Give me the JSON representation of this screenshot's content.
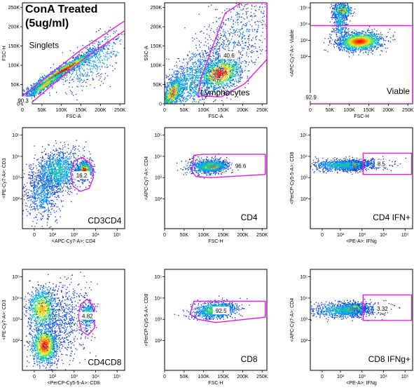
{
  "figure_title": [
    "ConA Treated",
    "(5ug/ml)"
  ],
  "colors": {
    "gate": "#e020e0",
    "frame": "#000000",
    "badge_bg": "#ffffff"
  },
  "chart_data": [
    {
      "type": "scatter",
      "gate_name": "Singlets",
      "percent": "90.3",
      "xlabel": "FSC-A",
      "ylabel": "FSC-H",
      "xscale": "linear",
      "yscale": "linear",
      "xlim": [
        0,
        262144
      ],
      "ylim": [
        0,
        262144
      ],
      "x_ticks": [
        {
          "v": 0,
          "label": "0"
        },
        {
          "v": 50000,
          "label": "50K"
        },
        {
          "v": 100000,
          "label": "100K"
        },
        {
          "v": 150000,
          "label": "150K"
        },
        {
          "v": 200000,
          "label": "200K"
        },
        {
          "v": 250000,
          "label": "250K"
        }
      ],
      "y_ticks": [
        {
          "v": 0,
          "label": "0"
        },
        {
          "v": 50000,
          "label": "50K"
        },
        {
          "v": 100000,
          "label": "100K"
        },
        {
          "v": 150000,
          "label": "150K"
        },
        {
          "v": 200000,
          "label": "200K"
        },
        {
          "v": 250000,
          "label": "250K"
        }
      ],
      "gate": [
        [
          0,
          0
        ],
        [
          0,
          20000
        ],
        [
          150000,
          140000
        ],
        [
          262000,
          215000
        ],
        [
          262000,
          190000
        ],
        [
          150000,
          112000
        ],
        [
          20000,
          0
        ]
      ],
      "label_pos": [
        17000,
        145000
      ],
      "label_anchor": "start",
      "pct_pos": [
        2000,
        8000
      ],
      "clusters": [
        {
          "x": 100000,
          "y": 85000,
          "sx": 48000,
          "sy": 30000,
          "rho": 0.97,
          "n": 1800,
          "w": 1.0
        },
        {
          "x": 60000,
          "y": 52000,
          "sx": 25000,
          "sy": 18000,
          "rho": 0.96,
          "n": 600,
          "w": 0.8
        },
        {
          "x": 180000,
          "y": 110000,
          "sx": 50000,
          "sy": 40000,
          "rho": 0.7,
          "n": 450,
          "w": 0.3
        }
      ]
    },
    {
      "type": "scatter",
      "gate_name": "Lymphocytes",
      "percent": "40.6",
      "xlabel": "FSC-A",
      "ylabel": "SSC-A",
      "xscale": "linear",
      "yscale": "linear",
      "xlim": [
        0,
        262144
      ],
      "ylim": [
        0,
        262144
      ],
      "x_ticks": [
        {
          "v": 0,
          "label": "0"
        },
        {
          "v": 50000,
          "label": "50K"
        },
        {
          "v": 100000,
          "label": "100K"
        },
        {
          "v": 150000,
          "label": "150K"
        },
        {
          "v": 200000,
          "label": "200K"
        },
        {
          "v": 250000,
          "label": "250K"
        }
      ],
      "y_ticks": [
        {
          "v": 0,
          "label": "0"
        },
        {
          "v": 50000,
          "label": "50K"
        },
        {
          "v": 100000,
          "label": "100K"
        },
        {
          "v": 150000,
          "label": "150K"
        },
        {
          "v": 200000,
          "label": "200K"
        },
        {
          "v": 250000,
          "label": "250K"
        }
      ],
      "gate": [
        [
          85000,
          20000
        ],
        [
          95000,
          72000
        ],
        [
          155000,
          235000
        ],
        [
          195000,
          262000
        ],
        [
          262000,
          262000
        ],
        [
          262000,
          115000
        ],
        [
          205000,
          52000
        ],
        [
          145000,
          18000
        ]
      ],
      "label_pos": [
        92000,
        22000
      ],
      "label_anchor": "start",
      "pct_pos": [
        165000,
        126000
      ],
      "clusters": [
        {
          "x": 140000,
          "y": 80000,
          "sx": 28000,
          "sy": 22000,
          "rho": 0.3,
          "n": 1400,
          "w": 1.0
        },
        {
          "x": 20000,
          "y": 30000,
          "sx": 14000,
          "sy": 22000,
          "rho": 0.5,
          "n": 900,
          "w": 0.9
        },
        {
          "x": 70000,
          "y": 60000,
          "sx": 45000,
          "sy": 50000,
          "rho": 0.6,
          "n": 1100,
          "w": 0.35
        },
        {
          "x": 190000,
          "y": 180000,
          "sx": 50000,
          "sy": 60000,
          "rho": 0.5,
          "n": 600,
          "w": 0.15
        }
      ]
    },
    {
      "type": "scatter",
      "gate_name": "Viable",
      "percent": "92.9",
      "xlabel": "FSC-H",
      "ylabel": "<APC-Cy7-A>: Viable",
      "xscale": "linear",
      "yscale": "log",
      "xlim": [
        0,
        262144
      ],
      "ylim": [
        -0.9,
        5.3
      ],
      "x_ticks": [
        {
          "v": 0,
          "label": "0"
        },
        {
          "v": 50000,
          "label": "50K"
        },
        {
          "v": 100000,
          "label": "100K"
        },
        {
          "v": 150000,
          "label": "150K"
        },
        {
          "v": 200000,
          "label": "200K"
        },
        {
          "v": 250000,
          "label": "250K"
        }
      ],
      "y_ticks": [
        {
          "v": 2,
          "label": "10²"
        },
        {
          "v": 3,
          "label": "10³"
        },
        {
          "v": 4,
          "label": "10⁴"
        },
        {
          "v": 5,
          "label": "10⁵"
        }
      ],
      "gate": [
        [
          0,
          -0.9
        ],
        [
          0,
          3.9
        ],
        [
          262000,
          3.9
        ],
        [
          262000,
          -0.9
        ]
      ],
      "label_pos": [
        255000,
        -0.3
      ],
      "label_anchor": "end",
      "pct_pos": [
        2000,
        -0.5
      ],
      "clusters": [
        {
          "x": 125000,
          "y": 2.95,
          "sx": 28000,
          "sy": 0.28,
          "rho": 0.1,
          "n": 1600,
          "w": 1.0
        },
        {
          "x": 80000,
          "y": 4.85,
          "sx": 12000,
          "sy": 0.22,
          "rho": 0.0,
          "n": 450,
          "w": 0.8
        },
        {
          "x": 75000,
          "y": 4.1,
          "sx": 9000,
          "sy": 0.55,
          "rho": 0.0,
          "n": 350,
          "w": 0.35
        }
      ]
    },
    {
      "type": "scatter",
      "gate_name": "CD3CD4",
      "percent": "16.2",
      "xlabel": "<APC-Cy7-A>: CD4",
      "ylabel": "<PE-Cy7-A>: CD3",
      "xscale": "log",
      "yscale": "log",
      "xlim": [
        0.6,
        5.35
      ],
      "ylim": [
        0.6,
        5.35
      ],
      "x_ticks": [
        {
          "v": 1.15,
          "label": "0"
        },
        {
          "v": 2,
          "label": "10²"
        },
        {
          "v": 3,
          "label": "10³"
        },
        {
          "v": 4,
          "label": "10⁴"
        },
        {
          "v": 5,
          "label": "10⁵"
        }
      ],
      "y_ticks": [
        {
          "v": 2,
          "label": "10²"
        },
        {
          "v": 3,
          "label": "10³"
        },
        {
          "v": 4,
          "label": "10⁴"
        },
        {
          "v": 5,
          "label": "10⁵"
        }
      ],
      "gate": [
        [
          3.0,
          3.8
        ],
        [
          3.4,
          3.95
        ],
        [
          3.8,
          3.6
        ],
        [
          3.9,
          3.0
        ],
        [
          3.7,
          2.5
        ],
        [
          3.3,
          2.35
        ],
        [
          2.95,
          2.6
        ],
        [
          2.85,
          3.2
        ]
      ],
      "label_pos": [
        5.2,
        0.85
      ],
      "label_anchor": "end",
      "pct_pos": [
        3.35,
        3.1
      ],
      "clusters": [
        {
          "x": 3.45,
          "y": 3.35,
          "sx": 0.17,
          "sy": 0.2,
          "rho": 0.1,
          "n": 1000,
          "w": 1.0
        },
        {
          "x": 2.2,
          "y": 3.3,
          "sx": 0.55,
          "sy": 0.5,
          "rho": 0.2,
          "n": 1300,
          "w": 0.4
        },
        {
          "x": 1.5,
          "y": 2.2,
          "sx": 0.4,
          "sy": 0.6,
          "rho": 0.0,
          "n": 600,
          "w": 0.25
        }
      ]
    },
    {
      "type": "scatter",
      "gate_name": "CD4",
      "percent": "96.6",
      "xlabel": "FSC-H",
      "ylabel": "<APC-Cy7-A>: CD4",
      "xscale": "linear",
      "yscale": "log",
      "xlim": [
        0,
        262144
      ],
      "ylim": [
        0.6,
        5.35
      ],
      "x_ticks": [
        {
          "v": 0,
          "label": "0"
        },
        {
          "v": 50000,
          "label": "50K"
        },
        {
          "v": 100000,
          "label": "100K"
        },
        {
          "v": 150000,
          "label": "150K"
        },
        {
          "v": 200000,
          "label": "200K"
        },
        {
          "v": 250000,
          "label": "250K"
        }
      ],
      "y_ticks": [
        {
          "v": 2,
          "label": "10²"
        },
        {
          "v": 3,
          "label": "10³"
        },
        {
          "v": 4,
          "label": "10⁴"
        },
        {
          "v": 5,
          "label": "10⁵"
        }
      ],
      "gate": [
        [
          70000,
          3.3
        ],
        [
          75000,
          4.05
        ],
        [
          100000,
          4.1
        ],
        [
          258000,
          4.1
        ],
        [
          258000,
          3.15
        ],
        [
          120000,
          3.0
        ],
        [
          80000,
          3.05
        ]
      ],
      "label_pos": [
        195000,
        1.0
      ],
      "label_anchor": "start",
      "pct_pos": [
        195000,
        3.55
      ],
      "clusters": [
        {
          "x": 120000,
          "y": 3.55,
          "sx": 18000,
          "sy": 0.12,
          "rho": 0.2,
          "n": 1100,
          "w": 1.0
        },
        {
          "x": 110000,
          "y": 3.55,
          "sx": 28000,
          "sy": 0.2,
          "rho": 0.2,
          "n": 500,
          "w": 0.45
        }
      ]
    },
    {
      "type": "scatter",
      "gate_name": "CD4 IFN+",
      "percent": "8.5",
      "xlabel": "<PE-A>: IFNg",
      "ylabel": "<PerCP-Cy5-5-A>: CD8",
      "xscale": "log",
      "yscale": "log",
      "xlim": [
        0.6,
        5.35
      ],
      "ylim": [
        0.6,
        5.35
      ],
      "x_ticks": [
        {
          "v": 1.15,
          "label": "0"
        },
        {
          "v": 2,
          "label": "10²"
        },
        {
          "v": 3,
          "label": "10³"
        },
        {
          "v": 4,
          "label": "10⁴"
        },
        {
          "v": 5,
          "label": "10⁵"
        }
      ],
      "y_ticks": [
        {
          "v": 2,
          "label": "10²"
        },
        {
          "v": 3,
          "label": "10³"
        },
        {
          "v": 4,
          "label": "10⁴"
        },
        {
          "v": 5,
          "label": "10⁵"
        }
      ],
      "gate": [
        [
          3.05,
          3.15
        ],
        [
          3.05,
          4.15
        ],
        [
          5.3,
          4.15
        ],
        [
          5.3,
          3.15
        ]
      ],
      "label_pos": [
        5.25,
        1.0
      ],
      "label_anchor": "end",
      "pct_pos": [
        3.9,
        3.65
      ],
      "clusters": [
        {
          "x": 2.5,
          "y": 3.6,
          "sx": 0.28,
          "sy": 0.1,
          "rho": 0.1,
          "n": 1100,
          "w": 1.0
        },
        {
          "x": 2.0,
          "y": 3.6,
          "sx": 0.7,
          "sy": 0.14,
          "rho": 0.0,
          "n": 700,
          "w": 0.4
        },
        {
          "x": 3.5,
          "y": 3.65,
          "sx": 0.45,
          "sy": 0.12,
          "rho": 0.0,
          "n": 220,
          "w": 0.15
        }
      ]
    },
    {
      "type": "scatter",
      "gate_name": "CD4CD8",
      "percent": "4.82",
      "xlabel": "<PerCP-Cy5-5-A>: CD8",
      "ylabel": "<PE-Cy7-A>: CD3",
      "xscale": "log",
      "yscale": "log",
      "xlim": [
        0.6,
        5.35
      ],
      "ylim": [
        0.6,
        5.35
      ],
      "x_ticks": [
        {
          "v": 1.15,
          "label": "0"
        },
        {
          "v": 2,
          "label": "10²"
        },
        {
          "v": 3,
          "label": "10³"
        },
        {
          "v": 4,
          "label": "10⁴"
        },
        {
          "v": 5,
          "label": "10⁵"
        }
      ],
      "y_ticks": [
        {
          "v": 2,
          "label": "10²"
        },
        {
          "v": 3,
          "label": "10³"
        },
        {
          "v": 4,
          "label": "10⁴"
        },
        {
          "v": 5,
          "label": "10⁵"
        }
      ],
      "gate": [
        [
          3.3,
          3.7
        ],
        [
          3.6,
          3.95
        ],
        [
          3.95,
          3.55
        ],
        [
          3.95,
          2.6
        ],
        [
          3.65,
          2.25
        ],
        [
          3.35,
          2.45
        ],
        [
          3.2,
          3.1
        ]
      ],
      "label_pos": [
        5.2,
        0.85
      ],
      "label_anchor": "end",
      "pct_pos": [
        3.62,
        3.15
      ],
      "clusters": [
        {
          "x": 1.6,
          "y": 1.8,
          "sx": 0.3,
          "sy": 0.45,
          "rho": 0.0,
          "n": 1300,
          "w": 1.0
        },
        {
          "x": 1.5,
          "y": 3.5,
          "sx": 0.35,
          "sy": 0.5,
          "rho": 0.0,
          "n": 1000,
          "w": 0.8
        },
        {
          "x": 3.6,
          "y": 3.2,
          "sx": 0.15,
          "sy": 0.3,
          "rho": 0.0,
          "n": 400,
          "w": 0.6
        },
        {
          "x": 2.6,
          "y": 3.0,
          "sx": 0.55,
          "sy": 0.9,
          "rho": 0.0,
          "n": 600,
          "w": 0.1
        }
      ]
    },
    {
      "type": "scatter",
      "gate_name": "CD8",
      "percent": "92.5",
      "xlabel": "FSC-H",
      "ylabel": "<PerCP-Cy5-5-A>: CD8",
      "xscale": "linear",
      "yscale": "log",
      "xlim": [
        0,
        262144
      ],
      "ylim": [
        0.6,
        5.35
      ],
      "x_ticks": [
        {
          "v": 0,
          "label": "0"
        },
        {
          "v": 50000,
          "label": "50K"
        },
        {
          "v": 100000,
          "label": "100K"
        },
        {
          "v": 150000,
          "label": "150K"
        },
        {
          "v": 200000,
          "label": "200K"
        },
        {
          "v": 250000,
          "label": "250K"
        }
      ],
      "y_ticks": [
        {
          "v": 2,
          "label": "10²"
        },
        {
          "v": 3,
          "label": "10³"
        },
        {
          "v": 4,
          "label": "10⁴"
        },
        {
          "v": 5,
          "label": "10⁵"
        }
      ],
      "gate": [
        [
          65000,
          3.25
        ],
        [
          75000,
          3.85
        ],
        [
          258000,
          3.85
        ],
        [
          258000,
          3.1
        ],
        [
          130000,
          2.85
        ],
        [
          85000,
          3.0
        ]
      ],
      "label_pos": [
        195000,
        1.0
      ],
      "label_anchor": "start",
      "pct_pos": [
        145000,
        3.4
      ],
      "clusters": [
        {
          "x": 135000,
          "y": 3.45,
          "sx": 22000,
          "sy": 0.15,
          "rho": 0.2,
          "n": 900,
          "w": 1.0
        },
        {
          "x": 120000,
          "y": 3.45,
          "sx": 32000,
          "sy": 0.22,
          "rho": 0.2,
          "n": 450,
          "w": 0.45
        }
      ]
    },
    {
      "type": "scatter",
      "gate_name": "CD8 IFNg+",
      "percent": "3.32",
      "xlabel": "<PE-A>: IFNg",
      "ylabel": "<APC-Cy7-A>: CD4",
      "xscale": "log",
      "yscale": "log",
      "xlim": [
        0.6,
        5.35
      ],
      "ylim": [
        0.6,
        5.35
      ],
      "x_ticks": [
        {
          "v": 1.15,
          "label": "0"
        },
        {
          "v": 2,
          "label": "10²"
        },
        {
          "v": 3,
          "label": "10³"
        },
        {
          "v": 4,
          "label": "10⁴"
        },
        {
          "v": 5,
          "label": "10⁵"
        }
      ],
      "y_ticks": [
        {
          "v": 2,
          "label": "10²"
        },
        {
          "v": 3,
          "label": "10³"
        },
        {
          "v": 4,
          "label": "10⁴"
        },
        {
          "v": 5,
          "label": "10⁵"
        }
      ],
      "gate": [
        [
          3.05,
          2.95
        ],
        [
          3.05,
          4.15
        ],
        [
          5.3,
          4.15
        ],
        [
          5.3,
          2.95
        ]
      ],
      "label_pos": [
        5.25,
        1.0
      ],
      "label_anchor": "end",
      "pct_pos": [
        3.95,
        3.5
      ],
      "clusters": [
        {
          "x": 2.55,
          "y": 3.5,
          "sx": 0.28,
          "sy": 0.13,
          "rho": 0.1,
          "n": 1000,
          "w": 1.0
        },
        {
          "x": 2.0,
          "y": 3.45,
          "sx": 0.7,
          "sy": 0.18,
          "rho": 0.0,
          "n": 700,
          "w": 0.4
        },
        {
          "x": 3.4,
          "y": 3.5,
          "sx": 0.45,
          "sy": 0.15,
          "rho": 0.0,
          "n": 180,
          "w": 0.15
        }
      ]
    }
  ]
}
